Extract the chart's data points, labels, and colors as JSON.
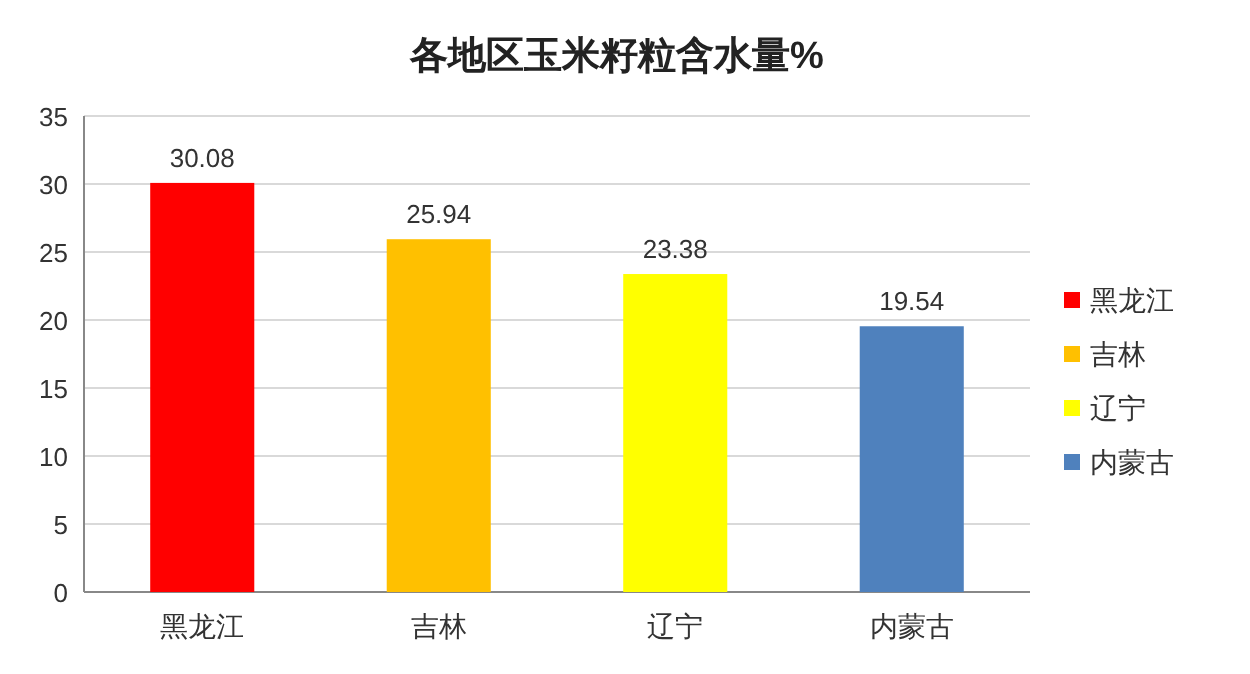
{
  "chart_data": {
    "type": "bar",
    "title": "各地区玉米籽粒含水量%",
    "categories": [
      "黑龙江",
      "吉林",
      "辽宁",
      "内蒙古"
    ],
    "stacked": true,
    "series": [
      {
        "name": "黑龙江",
        "color": "#ff0000",
        "values": [
          30.08,
          null,
          null,
          null
        ]
      },
      {
        "name": "吉林",
        "color": "#ffc000",
        "values": [
          null,
          25.94,
          null,
          null
        ]
      },
      {
        "name": "辽宁",
        "color": "#ffff00",
        "values": [
          null,
          null,
          23.38,
          null
        ]
      },
      {
        "name": "内蒙古",
        "color": "#4f81bd",
        "values": [
          null,
          null,
          null,
          19.54
        ]
      }
    ],
    "ylim": [
      0,
      35
    ],
    "yticks": [
      0,
      5,
      10,
      15,
      20,
      25,
      30,
      35
    ],
    "grid": "y",
    "data_labels": true,
    "legend": "right"
  }
}
